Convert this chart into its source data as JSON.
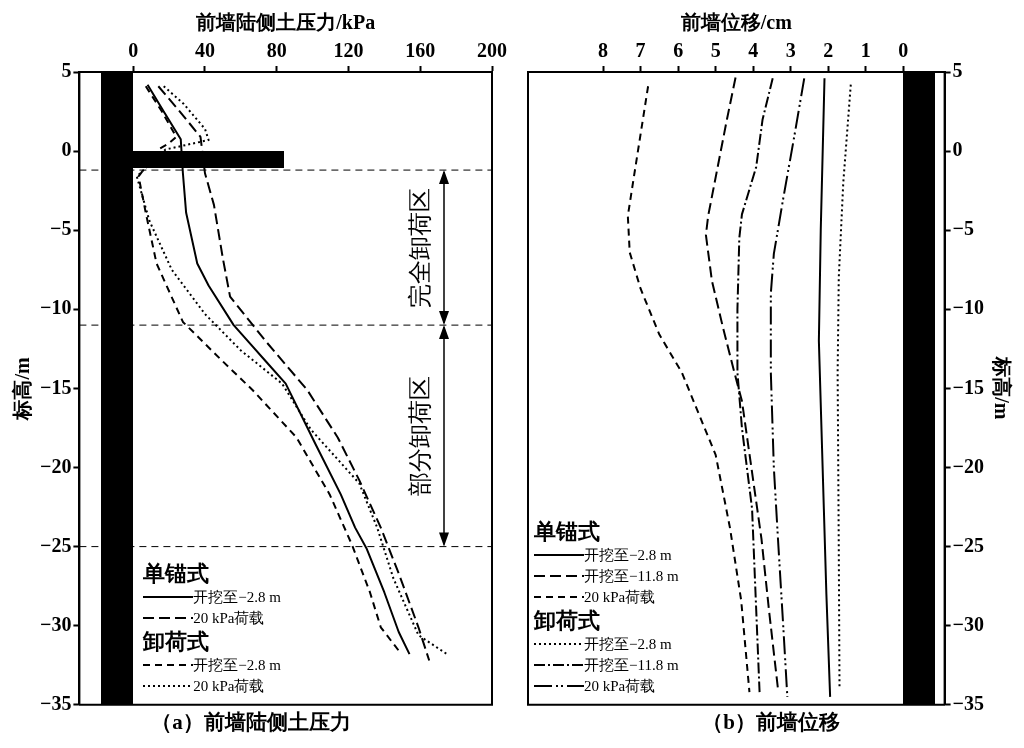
{
  "chart_data": [
    {
      "type": "line",
      "title": "（a）前墙陆侧土压力",
      "xlabel": "前墙陆侧土压力/kPa",
      "ylabel": "标高/m",
      "xlim": [
        -30,
        200
      ],
      "xticks": [
        0,
        40,
        80,
        120,
        160,
        200
      ],
      "ylim": [
        -35,
        5
      ],
      "yticks": [
        5,
        0,
        -5,
        -10,
        -15,
        -20,
        -25,
        -30,
        -35
      ],
      "marker": "none",
      "legend": "bottom left",
      "annotations": [
        "单锚式",
        "卸荷式",
        "完全卸荷区",
        "部分卸荷区"
      ],
      "ref_lines": [
        {
          "axis": "y",
          "value": -1.2,
          "line_style": "dashed",
          "color": "#000000"
        },
        {
          "axis": "y",
          "value": -11,
          "line_style": "dashed",
          "color": "#000000"
        },
        {
          "axis": "y",
          "value": -25,
          "line_style": "dashed",
          "color": "#000000"
        }
      ],
      "series": [
        {
          "name": "开挖至−2.8 m",
          "color": "#000000",
          "line_style": "solid",
          "x": [
            8,
            17,
            26.5,
            27.7,
            29.5,
            35.7,
            42,
            56,
            74,
            85,
            101.5,
            115.7,
            123.7,
            130,
            140,
            148,
            154
          ],
          "values": [
            4.2,
            2.5,
            0.75,
            -1.4,
            -3.9,
            -7.1,
            -8.5,
            -11,
            -13.3,
            -14.7,
            -18.5,
            -21.7,
            -23.8,
            -25.1,
            -27.9,
            -30.4,
            -31.8
          ]
        },
        {
          "name": "20 kPa荷载",
          "color": "#000000",
          "line_style": "longdash",
          "x": [
            14,
            26,
            37.5,
            40,
            45,
            50,
            54,
            74.5,
            97,
            114,
            126,
            138,
            148,
            159,
            165
          ],
          "values": [
            4.1,
            2.5,
            0.9,
            -1.4,
            -3.4,
            -6.8,
            -9.2,
            -12.1,
            -15.1,
            -18.1,
            -20.8,
            -23.8,
            -26.7,
            -30.1,
            -32.2
          ]
        },
        {
          "name": "开挖至−2.8 m",
          "color": "#000000",
          "line_style": "dashed",
          "x": [
            7,
            16,
            24,
            20,
            14,
            3,
            7,
            13,
            27.7,
            50,
            66.5,
            91,
            109.5,
            122,
            132,
            138,
            149.5
          ],
          "values": [
            4.1,
            2.5,
            0.9,
            0.5,
            0.1,
            -1.6,
            -3.9,
            -7.1,
            -10.8,
            -13.3,
            -15.1,
            -18.1,
            -21.7,
            -24.9,
            -27.9,
            -30.1,
            -31.8
          ]
        },
        {
          "name": "20 kPa荷载",
          "color": "#000000",
          "line_style": "dotted",
          "x": [
            17,
            28,
            40,
            42,
            30,
            18,
            2,
            9,
            21.5,
            40,
            60,
            83,
            99,
            126,
            136,
            145,
            159,
            175
          ],
          "values": [
            4.1,
            3,
            1.4,
            0.7,
            0.4,
            0.1,
            -1.6,
            -4.4,
            -7.5,
            -10.3,
            -12.6,
            -14.7,
            -17.6,
            -21,
            -23.8,
            -27,
            -30.6,
            -31.8
          ]
        }
      ]
    },
    {
      "type": "line",
      "title": "（b）前墙位移",
      "xlabel": "前墙位移/cm",
      "y2label": "标高/m",
      "xlim": [
        10,
        -1.1
      ],
      "xticks": [
        8,
        7,
        6,
        5,
        4,
        3,
        2,
        1,
        0
      ],
      "y2lim": [
        -35,
        5
      ],
      "y2ticks": [
        5,
        0,
        -5,
        -10,
        -15,
        -20,
        -25,
        -30,
        -35
      ],
      "marker": "none",
      "legend": "bottom left",
      "annotations": [
        "单锚式",
        "卸荷式"
      ],
      "series": [
        {
          "name": "开挖至−2.8 m",
          "color": "#000000",
          "line_style": "solid",
          "axis": "y2",
          "x": [
            2.1,
            2.2,
            2.25,
            2.15,
            2.05,
            1.95
          ],
          "values": [
            4.6,
            -5,
            -12,
            -20,
            -28,
            -34.5
          ]
        },
        {
          "name": "开挖至−11.8 m",
          "color": "#000000",
          "line_style": "longdash",
          "axis": "y2",
          "x": [
            4.47,
            4.7,
            5.2,
            5.26,
            5.1,
            4.8,
            4.5,
            4.3,
            4.12,
            3.78,
            3.58,
            3.33
          ],
          "values": [
            4.65,
            2,
            -4.1,
            -5.3,
            -8.2,
            -11.2,
            -14,
            -15.8,
            -18.8,
            -24.5,
            -29,
            -34.2
          ]
        },
        {
          "name": "20 kPa荷载",
          "color": "#000000",
          "line_style": "dashed",
          "axis": "y2",
          "x": [
            6.8,
            7.19,
            7.34,
            7.29,
            7.0,
            6.5,
            5.9,
            5.4,
            5.0,
            4.62,
            4.32,
            4.1
          ],
          "values": [
            4.1,
            -1.8,
            -4.1,
            -6.4,
            -8.7,
            -11.6,
            -14,
            -16.9,
            -19.2,
            -23.8,
            -28.4,
            -34.2
          ]
        },
        {
          "name": "开挖至−2.8 m",
          "color": "#000000",
          "line_style": "dotted",
          "axis": "y2",
          "x": [
            1.4,
            1.6,
            1.72,
            1.75,
            1.72,
            1.7
          ],
          "values": [
            4.2,
            -2,
            -8,
            -14,
            -25,
            -34
          ]
        },
        {
          "name": "开挖至−11.8 m",
          "color": "#000000",
          "line_style": "dashdot",
          "axis": "y2",
          "x": [
            3.48,
            3.75,
            3.92,
            4.3,
            4.37,
            4.42,
            4.42,
            4.3,
            4.03,
            3.83
          ],
          "values": [
            4.6,
            2,
            -1,
            -4,
            -5.5,
            -10,
            -14,
            -17.5,
            -22.6,
            -34.2
          ]
        },
        {
          "name": "20 kPa荷载",
          "color": "#000000",
          "line_style": "longdashdot",
          "axis": "y2",
          "x": [
            2.64,
            2.9,
            3.2,
            3.45,
            3.53,
            3.53,
            3.45,
            3.33,
            3.2,
            3.09
          ],
          "values": [
            4.6,
            1,
            -3,
            -6.5,
            -9,
            -14,
            -20,
            -24.9,
            -30,
            -34.5
          ]
        }
      ]
    }
  ]
}
